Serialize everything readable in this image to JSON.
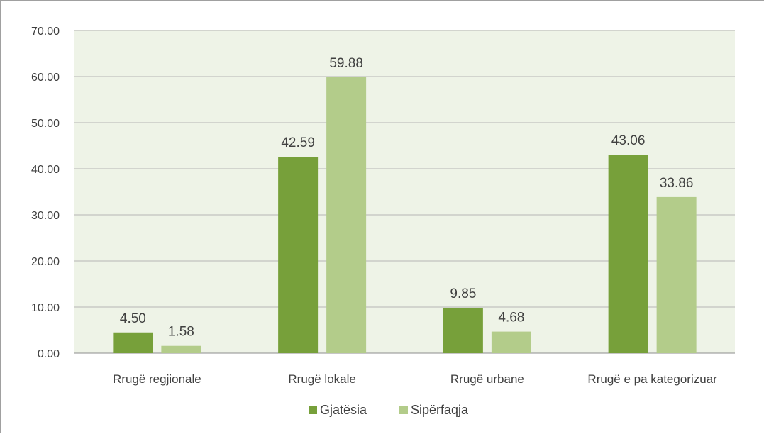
{
  "chart_data": {
    "type": "bar",
    "categories": [
      "Rrugë regjionale",
      "Rrugë lokale",
      "Rrugë urbane",
      "Rrugë e pa kategorizuar"
    ],
    "series": [
      {
        "name": "Gjatësia",
        "values": [
          4.5,
          42.59,
          9.85,
          43.06
        ],
        "labels": [
          "4.50",
          "42.59",
          "9.85",
          "43.06"
        ],
        "color": "#77a03a"
      },
      {
        "name": "Sipërfaqja",
        "values": [
          1.58,
          59.88,
          4.68,
          33.86
        ],
        "labels": [
          "1.58",
          "59.88",
          "4.68",
          "33.86"
        ],
        "color": "#b3cc8a"
      }
    ],
    "ylim": [
      0,
      70
    ],
    "yticks": [
      "0.00",
      "10.00",
      "20.00",
      "30.00",
      "40.00",
      "50.00",
      "60.00",
      "70.00"
    ],
    "ytick_values": [
      0,
      10,
      20,
      30,
      40,
      50,
      60,
      70
    ],
    "grid": true,
    "plot_background": "#eef3e7",
    "legend_position": "bottom"
  }
}
